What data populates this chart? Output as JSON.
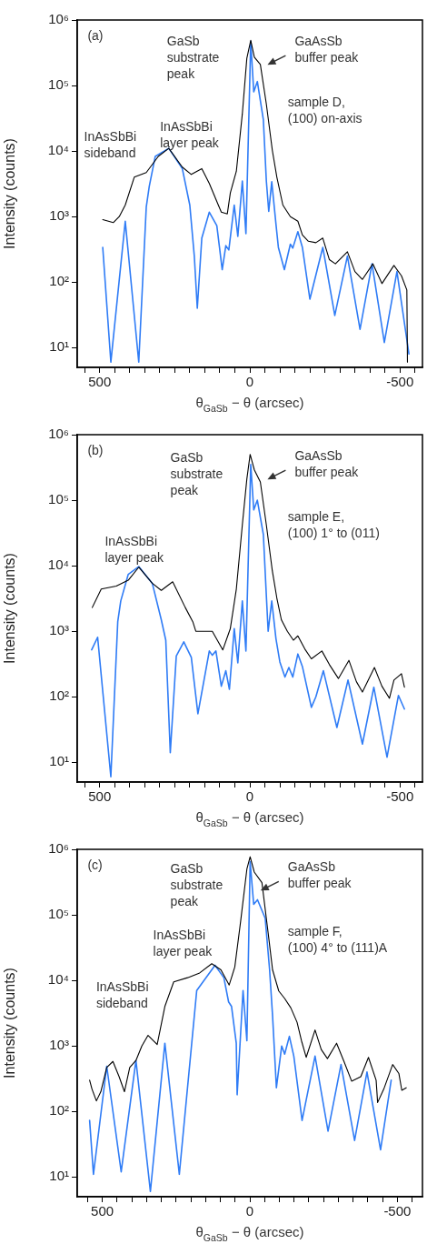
{
  "chart_data": [
    {
      "type": "line",
      "xlabel": "θ$_{GaSb}$ − θ (arcsec)",
      "ylabel": "Intensity (counts)",
      "log": "y",
      "marker": "none",
      "xlim": [
        575,
        -575
      ],
      "ylim": [
        5,
        1000000
      ],
      "xticks": [
        {
          "value": 550,
          "label": null
        },
        500,
        {
          "value": 450,
          "label": null
        },
        {
          "value": 400,
          "label": null
        },
        {
          "value": 350,
          "label": null
        },
        {
          "value": 300,
          "label": null
        },
        {
          "value": 250,
          "label": null
        },
        {
          "value": 200,
          "label": null
        },
        {
          "value": 150,
          "label": null
        },
        {
          "value": 100,
          "label": null
        },
        {
          "value": 50,
          "label": null
        },
        0,
        {
          "value": -50,
          "label": null
        },
        {
          "value": -100,
          "label": null
        },
        {
          "value": -150,
          "label": null
        },
        {
          "value": -200,
          "label": null
        },
        {
          "value": -250,
          "label": null
        },
        {
          "value": -300,
          "label": null
        },
        {
          "value": -350,
          "label": null
        },
        {
          "value": -400,
          "label": null
        },
        {
          "value": -450,
          "label": null
        },
        -500,
        {
          "value": -550,
          "label": null
        }
      ],
      "yticks": [
        {
          "value": 10,
          "label": "10¹"
        },
        {
          "value": 100,
          "label": "10²"
        },
        {
          "value": 1000,
          "label": "10³"
        },
        {
          "value": 10000,
          "label": "10⁴"
        },
        {
          "value": 100000,
          "label": "10⁵"
        },
        {
          "value": 1000000,
          "label": "10⁶"
        }
      ],
      "series": [
        {
          "color": "#000000",
          "x": [
            490,
            455,
            435,
            415,
            385,
            345,
            305,
            270,
            225,
            195,
            160,
            135,
            105,
            95,
            75,
            65,
            45,
            25,
            10,
            -3,
            -15,
            -35,
            -55,
            -75,
            -90,
            -110,
            -135,
            -160,
            -175,
            -195,
            -220,
            -243,
            -265,
            -285,
            -325,
            -350,
            -375,
            -410,
            -440,
            -480,
            -505,
            -523,
            -525
          ],
          "values": [
            900,
            810,
            1000,
            1500,
            4000,
            4700,
            8300,
            11000,
            5700,
            4400,
            5400,
            3200,
            1500,
            1170,
            1100,
            2300,
            4900,
            37000,
            260000,
            490000,
            270000,
            210000,
            52000,
            10200,
            4000,
            1500,
            1000,
            850,
            525,
            420,
            400,
            470,
            220,
            190,
            290,
            145,
            110,
            190,
            95,
            180,
            125,
            76,
            6
          ]
        },
        {
          "color": "#2f7cf6",
          "x": [
            490,
            463,
            415,
            370,
            345,
            335,
            315,
            270,
            225,
            200,
            185,
            175,
            160,
            135,
            110,
            92,
            80,
            70,
            52,
            40,
            25,
            13,
            -3,
            -13,
            -25,
            -45,
            -55,
            -63,
            -73,
            -87,
            -95,
            -115,
            -135,
            -143,
            -160,
            -175,
            -200,
            -243,
            -283,
            -325,
            -367,
            -407,
            -448,
            -490,
            -530
          ],
          "values": [
            340,
            6,
            850,
            6,
            1400,
            2900,
            8300,
            11000,
            5400,
            1500,
            250,
            40,
            470,
            1170,
            730,
            155,
            360,
            310,
            1500,
            500,
            3500,
            550,
            470000,
            80000,
            115000,
            30000,
            3500,
            1200,
            3400,
            770,
            340,
            155,
            380,
            330,
            590,
            340,
            55,
            340,
            31,
            250,
            19,
            190,
            12,
            145,
            8
          ]
        }
      ],
      "annotations": [
        "(a)",
        "sample D,\n(100) on-axis",
        "GaSb\nsubstrate\npeak",
        "GaAsSb\nbuffer peak",
        "InAsSbBi\nlayer peak",
        "InAsSbBi\nsideband"
      ]
    },
    {
      "type": "line",
      "xlabel": "θ$_{GaSb}$ − θ (arcsec)",
      "ylabel": "Intensity (counts)",
      "log": "y",
      "marker": "none",
      "xlim": [
        575,
        -575
      ],
      "ylim": [
        5,
        1000000
      ],
      "xticks": [
        {
          "value": 550,
          "label": null
        },
        500,
        {
          "value": 450,
          "label": null
        },
        {
          "value": 400,
          "label": null
        },
        {
          "value": 350,
          "label": null
        },
        {
          "value": 300,
          "label": null
        },
        {
          "value": 250,
          "label": null
        },
        {
          "value": 200,
          "label": null
        },
        {
          "value": 150,
          "label": null
        },
        {
          "value": 100,
          "label": null
        },
        {
          "value": 50,
          "label": null
        },
        0,
        {
          "value": -50,
          "label": null
        },
        {
          "value": -100,
          "label": null
        },
        {
          "value": -150,
          "label": null
        },
        {
          "value": -200,
          "label": null
        },
        {
          "value": -250,
          "label": null
        },
        {
          "value": -300,
          "label": null
        },
        {
          "value": -350,
          "label": null
        },
        {
          "value": -400,
          "label": null
        },
        {
          "value": -450,
          "label": null
        },
        -500,
        {
          "value": -550,
          "label": null
        }
      ],
      "yticks": [
        {
          "value": 10,
          "label": "10¹"
        },
        {
          "value": 100,
          "label": "10²"
        },
        {
          "value": 1000,
          "label": "10³"
        },
        {
          "value": 10000,
          "label": "10⁴"
        },
        {
          "value": 100000,
          "label": "10⁵"
        },
        {
          "value": 1000000,
          "label": "10⁶"
        }
      ],
      "series": [
        {
          "color": "#000000",
          "x": [
            525,
            495,
            445,
            405,
            370,
            325,
            295,
            257,
            215,
            190,
            180,
            140,
            125,
            90,
            65,
            45,
            25,
            10,
            -1,
            -15,
            -35,
            -55,
            -75,
            -90,
            -105,
            -125,
            -145,
            -160,
            -185,
            -205,
            -240,
            -265,
            -295,
            -330,
            -355,
            -375,
            -415,
            -440,
            -465,
            -480,
            -505,
            -515
          ],
          "values": [
            2300,
            4400,
            4900,
            6000,
            9500,
            5400,
            4200,
            5700,
            2300,
            1400,
            1000,
            1000,
            1000,
            520,
            1100,
            4400,
            42000,
            210000,
            500000,
            290000,
            190000,
            42000,
            8300,
            3200,
            1500,
            1000,
            730,
            850,
            520,
            380,
            500,
            310,
            190,
            360,
            170,
            118,
            280,
            145,
            95,
            180,
            225,
            140
          ]
        },
        {
          "color": "#2f7cf6",
          "x": [
            527,
            507,
            463,
            440,
            430,
            405,
            370,
            325,
            295,
            280,
            265,
            245,
            220,
            195,
            173,
            135,
            125,
            113,
            95,
            80,
            68,
            52,
            40,
            25,
            13,
            -3,
            -13,
            -25,
            -45,
            -55,
            -61,
            -73,
            -87,
            -100,
            -117,
            -130,
            -143,
            -160,
            -175,
            -205,
            -220,
            -245,
            -290,
            -327,
            -375,
            -413,
            -457,
            -495,
            -515
          ],
          "values": [
            520,
            810,
            6,
            1400,
            2900,
            7400,
            9700,
            5400,
            1500,
            730,
            14,
            420,
            690,
            400,
            55,
            500,
            430,
            500,
            145,
            250,
            130,
            1100,
            330,
            2900,
            500,
            350000,
            71000,
            100000,
            30000,
            3500,
            1000,
            2900,
            770,
            340,
            200,
            280,
            200,
            450,
            290,
            69,
            100,
            250,
            34,
            180,
            19,
            140,
            12,
            105,
            65
          ]
        }
      ],
      "annotations": [
        "(b)",
        "sample E,\n(100) 1° to (011)",
        "GaSb\nsubstrate\npeak",
        "GaAsSb\nbuffer peak",
        "InAsSbBi\nlayer peak"
      ]
    },
    {
      "type": "line",
      "xlabel": "θ$_{GaSb}$ − θ (arcsec)",
      "ylabel": "Intensity (counts)",
      "log": "y",
      "marker": "none",
      "xlim": [
        585,
        -585
      ],
      "ylim": [
        5,
        1000000
      ],
      "xticks": [
        {
          "value": 550,
          "label": null
        },
        500,
        {
          "value": 450,
          "label": null
        },
        {
          "value": 400,
          "label": null
        },
        {
          "value": 350,
          "label": null
        },
        {
          "value": 300,
          "label": null
        },
        {
          "value": 250,
          "label": null
        },
        {
          "value": 200,
          "label": null
        },
        {
          "value": 150,
          "label": null
        },
        {
          "value": 100,
          "label": null
        },
        {
          "value": 50,
          "label": null
        },
        0,
        {
          "value": -50,
          "label": null
        },
        {
          "value": -100,
          "label": null
        },
        {
          "value": -150,
          "label": null
        },
        {
          "value": -200,
          "label": null
        },
        {
          "value": -250,
          "label": null
        },
        {
          "value": -300,
          "label": null
        },
        {
          "value": -350,
          "label": null
        },
        {
          "value": -400,
          "label": null
        },
        {
          "value": -450,
          "label": null
        },
        -500,
        {
          "value": -550,
          "label": null
        }
      ],
      "yticks": [
        {
          "value": 10,
          "label": "10¹"
        },
        {
          "value": 100,
          "label": "10²"
        },
        {
          "value": 1000,
          "label": "10³"
        },
        {
          "value": 10000,
          "label": "10⁴"
        },
        {
          "value": 100000,
          "label": "10⁵"
        },
        {
          "value": 1000000,
          "label": "10⁶"
        }
      ],
      "series": [
        {
          "color": "#000000",
          "x": [
            543,
            535,
            520,
            505,
            485,
            464,
            443,
            425,
            407,
            386,
            366,
            345,
            314,
            288,
            258,
            211,
            170,
            129,
            98,
            70,
            51,
            31,
            10,
            -1,
            -15,
            -41,
            -62,
            -77,
            -98,
            -118,
            -139,
            -160,
            -175,
            -191,
            -221,
            -242,
            -263,
            -294,
            -319,
            -345,
            -376,
            -402,
            -428,
            -433,
            -454,
            -484,
            -505,
            -515,
            -530
          ],
          "values": [
            300,
            220,
            145,
            200,
            470,
            580,
            340,
            200,
            470,
            600,
            1000,
            1450,
            1050,
            4000,
            9500,
            11000,
            13000,
            18000,
            14500,
            8500,
            16000,
            81000,
            500000,
            770000,
            450000,
            310000,
            53000,
            14500,
            6900,
            5300,
            3800,
            2300,
            1200,
            670,
            1750,
            880,
            640,
            1100,
            580,
            290,
            340,
            670,
            300,
            137,
            220,
            520,
            380,
            210,
            230
          ]
        },
        {
          "color": "#2f7cf6",
          "x": [
            543,
            530,
            485,
            436,
            386,
            337,
            288,
            239,
            180,
            118,
            88,
            72,
            62,
            46,
            43,
            23,
            10,
            -1,
            -13,
            -26,
            -52,
            -67,
            -77,
            -90,
            -108,
            -118,
            -134,
            -149,
            -177,
            -221,
            -265,
            -309,
            -355,
            -397,
            -443,
            -479
          ],
          "values": [
            73,
            11,
            490,
            12,
            600,
            6,
            1100,
            11,
            7000,
            17000,
            11000,
            4700,
            4000,
            1100,
            180,
            7000,
            1200,
            650000,
            145000,
            170000,
            89000,
            14500,
            2900,
            230,
            1000,
            750,
            1400,
            700,
            73,
            700,
            50,
            520,
            36,
            400,
            26,
            300
          ]
        }
      ],
      "annotations": [
        "(c)",
        "sample F,\n(100) 4° to (111)A",
        "GaSb\nsubstrate\npeak",
        "GaAsSb\nbuffer peak",
        "InAsSbBi\nlayer peak",
        "InAsSbBi\nsideband"
      ]
    }
  ]
}
